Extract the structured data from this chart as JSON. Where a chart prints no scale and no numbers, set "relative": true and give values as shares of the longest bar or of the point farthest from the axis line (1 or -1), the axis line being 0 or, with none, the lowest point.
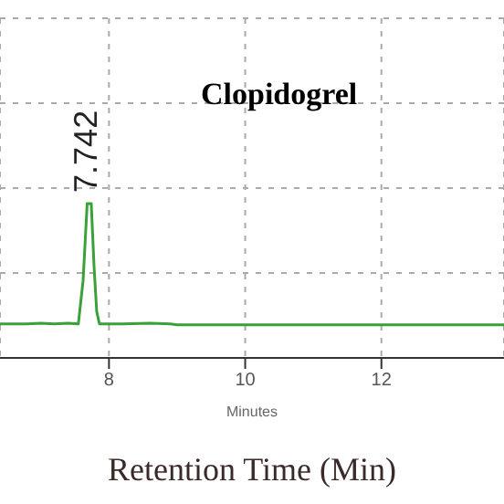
{
  "chart_data": {
    "type": "line",
    "title": "Clopidogrel",
    "xlabel": "Minutes",
    "relative": true,
    "annotations": [
      {
        "text": "7.742",
        "x": 7.742,
        "y": 1
      },
      "Retention Time (Min)"
    ],
    "x": [
      6.4,
      6.8,
      7.0,
      7.2,
      7.4,
      7.55,
      7.62,
      7.68,
      7.74,
      7.78,
      7.82,
      7.86,
      8.2,
      8.6,
      8.9,
      9.0,
      13.8
    ],
    "series": [
      {
        "color": "#3aa03a",
        "values": [
          0.22,
          0.22,
          0.225,
          0.22,
          0.225,
          0.22,
          0.5,
          1,
          1,
          0.6,
          0.3,
          0.22,
          0.22,
          0.225,
          0.22,
          0.215,
          0.215
        ]
      }
    ],
    "xlim": [
      6.4,
      13.8
    ],
    "xticks": [
      8,
      10,
      12
    ],
    "grid": true,
    "marker": "none",
    "line_style": "solid"
  }
}
